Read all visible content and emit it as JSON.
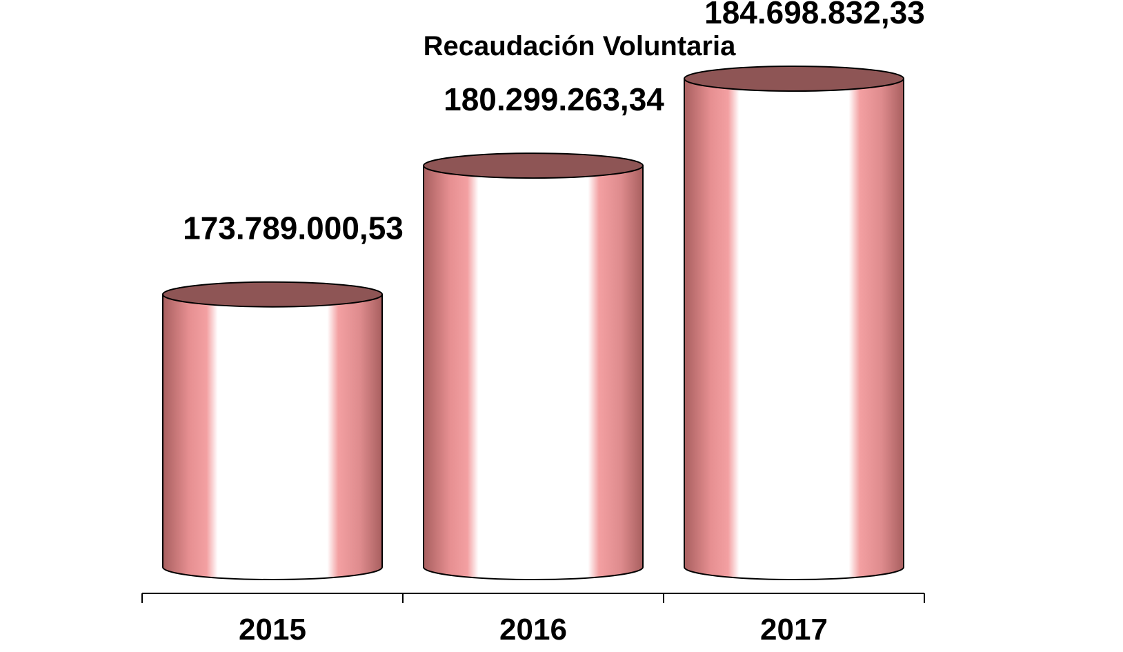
{
  "chart_data": {
    "type": "bar",
    "shape": "cylinder",
    "title": "Recaudación Voluntaria",
    "xlabel": "",
    "ylabel": "",
    "categories": [
      "2015",
      "2016",
      "2017"
    ],
    "values": [
      173789000.53,
      180299263.34,
      184698832.33
    ],
    "value_labels": [
      "173.789.000,53",
      "180.299.263,34",
      "184.698.832,33"
    ],
    "ylim": [
      160000000,
      190000000
    ],
    "grid": false,
    "legend": "none",
    "colors": {
      "body_edge": "#a85f5f",
      "body_pink": "#f19597",
      "body_highlight": "#ffffff",
      "top": "#8e5555",
      "outline": "#000000"
    }
  }
}
